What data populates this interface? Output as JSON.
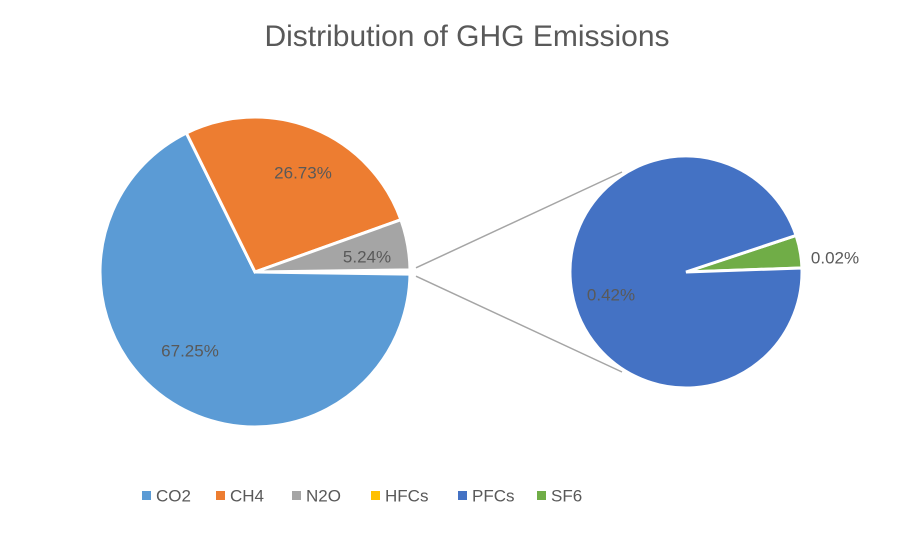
{
  "chart_data": {
    "type": "pie",
    "subtype": "pie-of-pie",
    "title": "Distribution of GHG Emissions",
    "legend_position": "bottom",
    "series": [
      {
        "name": "CO2",
        "value": 67.25,
        "label": "67.25%",
        "color": "#5B9BD5",
        "plot": "main"
      },
      {
        "name": "CH4",
        "value": 26.73,
        "label": "26.73%",
        "color": "#ED7D31",
        "plot": "main"
      },
      {
        "name": "N2O",
        "value": 5.24,
        "label": "5.24%",
        "color": "#A5A5A5",
        "plot": "main"
      },
      {
        "name": "HFCs",
        "value": 0,
        "label": "",
        "color": "#FFC000",
        "plot": "secondary"
      },
      {
        "name": "PFCs",
        "value": 0.42,
        "label": "0.42%",
        "color": "#4472C4",
        "plot": "secondary"
      },
      {
        "name": "SF6",
        "value": 0.02,
        "label": "0.02%",
        "color": "#70AD47",
        "plot": "secondary"
      }
    ]
  }
}
